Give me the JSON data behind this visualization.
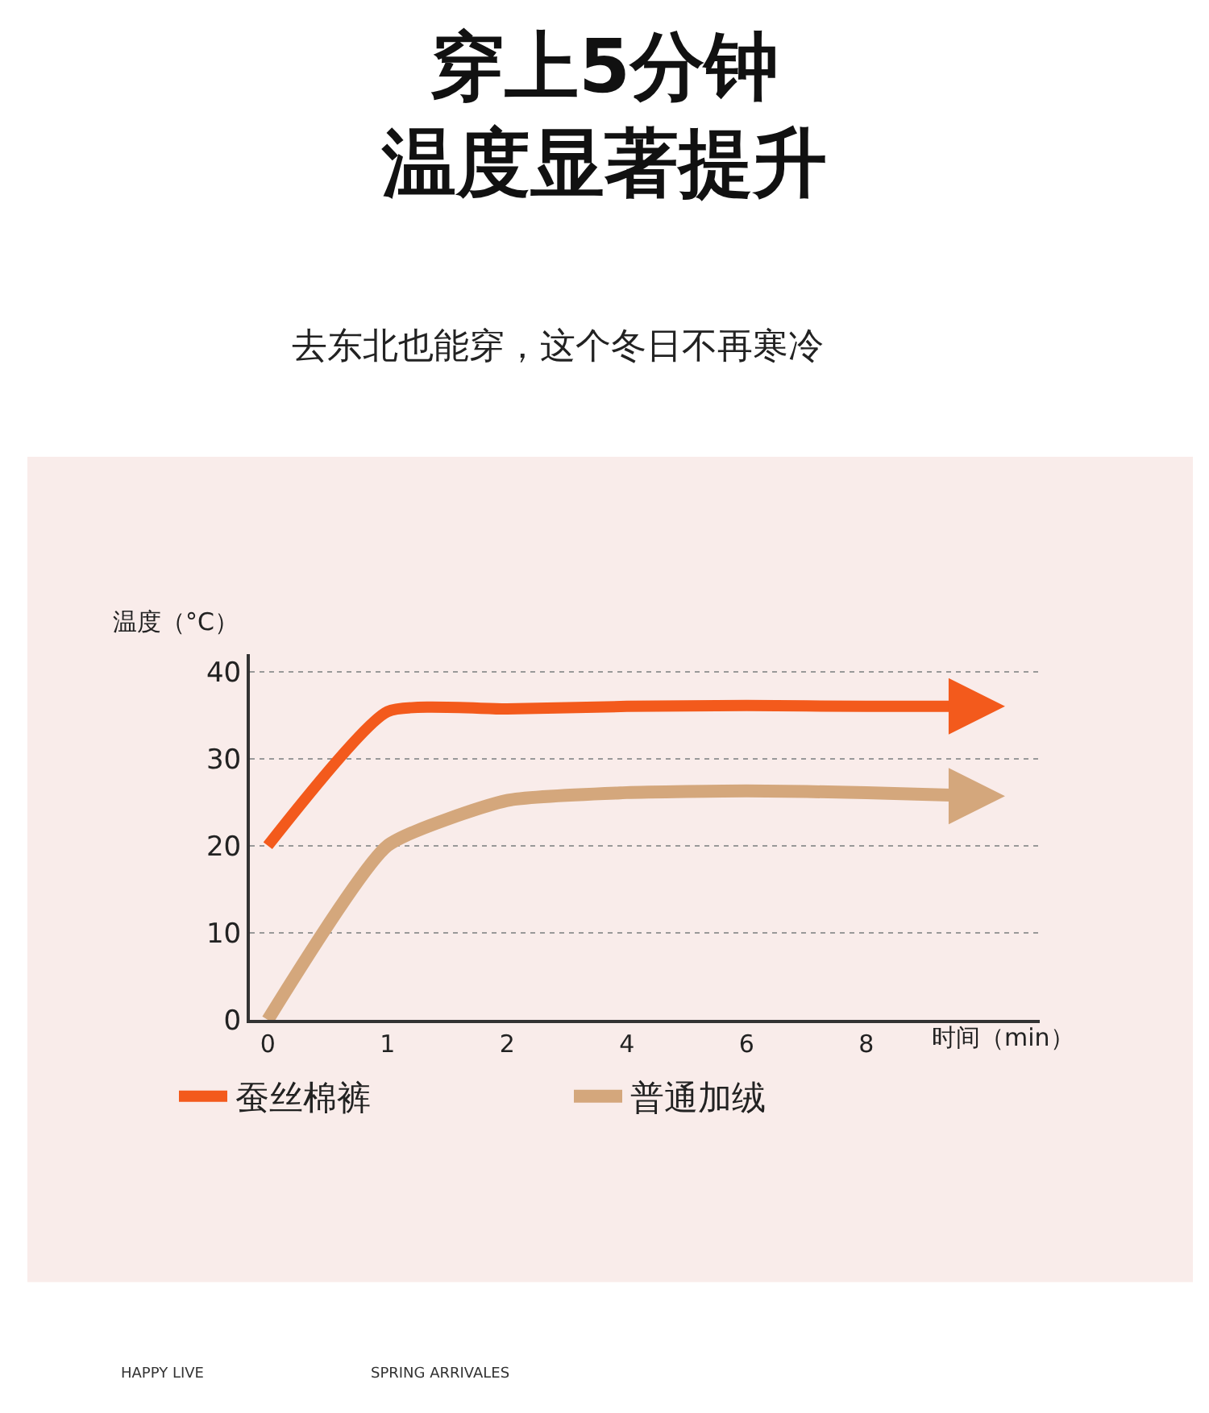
{
  "chart_data": {
    "type": "line",
    "title": "穿上5分钟温度显著提升",
    "subtitle": "去东北也能穿，这个冬日不再寒冷",
    "xlabel": "时间（min）",
    "ylabel": "温度（°C）",
    "categories": [
      "0",
      "1",
      "2",
      "4",
      "6",
      "8",
      null
    ],
    "series": [
      {
        "name": "蚕丝棉裤",
        "color": "#f35a1c",
        "values": [
          20,
          35.4,
          35.7,
          36,
          36.1,
          36,
          36
        ]
      },
      {
        "name": "普通加绒",
        "color": "#d4a77c",
        "values": [
          0,
          20,
          25.2,
          26.1,
          26.3,
          26.1,
          25.7
        ]
      }
    ],
    "ylim": [
      0,
      42
    ],
    "yticks": [
      0,
      10,
      20,
      30,
      40
    ],
    "grid": "y",
    "legend": "bottom",
    "marker": "none",
    "line_style": "solid",
    "annotations": [
      "HAPPY LIVE",
      "SPRING ARRIVALES"
    ]
  }
}
